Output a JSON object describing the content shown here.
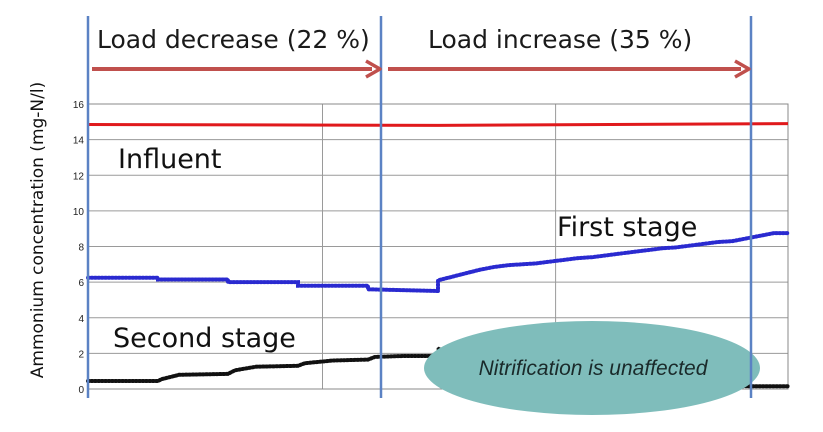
{
  "chart_data": {
    "type": "line",
    "ylabel": "Ammonium  concentration (mg-N/l)",
    "ylim": [
      0,
      16
    ],
    "yticks": [
      0,
      2,
      4,
      6,
      8,
      10,
      12,
      14,
      16
    ],
    "grid": true,
    "phases": [
      {
        "label": "Load decrease (22 %)"
      },
      {
        "label": "Load increase (35 %)"
      }
    ],
    "annotation": "Nitrification is unaffected",
    "series": [
      {
        "name": "Influent",
        "color": "#e0191c",
        "x": [
          0,
          50,
          100
        ],
        "y": [
          14.85,
          14.8,
          14.9
        ]
      },
      {
        "name": "First stage",
        "color": "#2a2ad0",
        "x": [
          0,
          10,
          10,
          20,
          20,
          30,
          30,
          40,
          40,
          50,
          50,
          52,
          54,
          56,
          58,
          60,
          62,
          64,
          66,
          68,
          70,
          72,
          74,
          76,
          78,
          80,
          82,
          84,
          86,
          88,
          90,
          92,
          94,
          96,
          98,
          100
        ],
        "y": [
          6.25,
          6.25,
          6.15,
          6.15,
          6.0,
          6.0,
          5.8,
          5.8,
          5.6,
          5.5,
          6.1,
          6.3,
          6.5,
          6.7,
          6.85,
          6.95,
          7.0,
          7.05,
          7.15,
          7.25,
          7.35,
          7.4,
          7.5,
          7.6,
          7.7,
          7.8,
          7.9,
          7.95,
          8.05,
          8.15,
          8.25,
          8.3,
          8.45,
          8.6,
          8.75,
          8.75
        ]
      },
      {
        "name": "Second stage",
        "color": "#111111",
        "x": [
          0,
          10,
          10.5,
          13,
          20,
          21,
          24,
          30,
          31,
          35,
          40,
          41,
          45,
          50,
          50.1,
          51,
          52,
          54,
          56,
          60,
          70,
          80,
          90,
          100
        ],
        "y": [
          0.45,
          0.45,
          0.55,
          0.8,
          0.85,
          1.05,
          1.25,
          1.3,
          1.45,
          1.6,
          1.65,
          1.8,
          1.85,
          1.85,
          2.3,
          1.3,
          0.5,
          0.3,
          0.25,
          0.2,
          0.18,
          0.17,
          0.16,
          0.15
        ]
      }
    ]
  }
}
